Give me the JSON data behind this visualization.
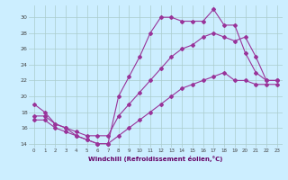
{
  "xlabel": "Windchill (Refroidissement éolien,°C)",
  "bg_color": "#cceeff",
  "grid_color": "#aacccc",
  "line_color": "#993399",
  "xlim": [
    -0.5,
    23.5
  ],
  "ylim": [
    13.5,
    31.5
  ],
  "yticks": [
    14,
    16,
    18,
    20,
    22,
    24,
    26,
    28,
    30
  ],
  "xticks": [
    0,
    1,
    2,
    3,
    4,
    5,
    6,
    7,
    8,
    9,
    10,
    11,
    12,
    13,
    14,
    15,
    16,
    17,
    18,
    19,
    20,
    21,
    22,
    23
  ],
  "line1_x": [
    0,
    1,
    2,
    3,
    4,
    5,
    6,
    7,
    8,
    9,
    10,
    11,
    12,
    13,
    14,
    15,
    16,
    17,
    18,
    19,
    20,
    21,
    22,
    23
  ],
  "line1_y": [
    19.0,
    18.0,
    16.5,
    16.0,
    15.0,
    14.5,
    14.0,
    14.0,
    20.0,
    22.5,
    25.0,
    28.0,
    30.0,
    30.0,
    29.5,
    29.5,
    29.5,
    31.0,
    29.0,
    29.0,
    25.5,
    23.0,
    22.0,
    22.0
  ],
  "line2_x": [
    0,
    1,
    2,
    3,
    4,
    5,
    6,
    7,
    8,
    9,
    10,
    11,
    12,
    13,
    14,
    15,
    16,
    17,
    18,
    19,
    20,
    21,
    22,
    23
  ],
  "line2_y": [
    17.5,
    17.5,
    16.5,
    16.0,
    15.5,
    15.0,
    15.0,
    15.0,
    17.5,
    19.0,
    20.5,
    22.0,
    23.5,
    25.0,
    26.0,
    26.5,
    27.5,
    28.0,
    27.5,
    27.0,
    27.5,
    25.0,
    22.0,
    22.0
  ],
  "line3_x": [
    0,
    1,
    2,
    3,
    4,
    5,
    6,
    7,
    8,
    9,
    10,
    11,
    12,
    13,
    14,
    15,
    16,
    17,
    18,
    19,
    20,
    21,
    22,
    23
  ],
  "line3_y": [
    17.0,
    17.0,
    16.0,
    15.5,
    15.0,
    14.5,
    14.0,
    14.0,
    15.0,
    16.0,
    17.0,
    18.0,
    19.0,
    20.0,
    21.0,
    21.5,
    22.0,
    22.5,
    23.0,
    22.0,
    22.0,
    21.5,
    21.5,
    21.5
  ]
}
